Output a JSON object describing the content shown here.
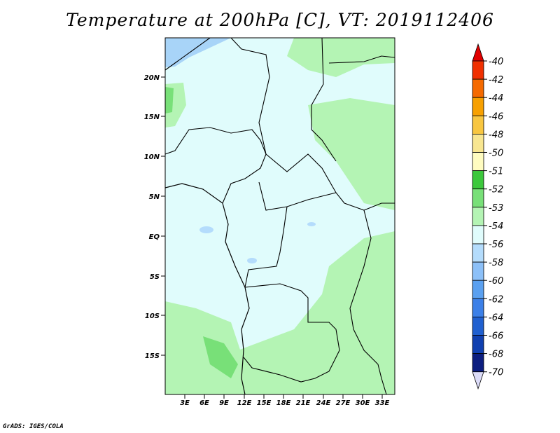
{
  "title": "Temperature at 200hPa [C], VT: 2019112406",
  "credit": "GrADS: IGES/COLA",
  "map": {
    "lat_labels": [
      "20N",
      "15N",
      "10N",
      "5N",
      "EQ",
      "5S",
      "10S",
      "15S"
    ],
    "lon_labels": [
      "3E",
      "6E",
      "9E",
      "12E",
      "15E",
      "18E",
      "21E",
      "24E",
      "27E",
      "30E",
      "33E"
    ]
  },
  "colorbar": {
    "levels": [
      "-40",
      "-42",
      "-44",
      "-46",
      "-48",
      "-50",
      "-51",
      "-52",
      "-53",
      "-54",
      "-56",
      "-58",
      "-60",
      "-62",
      "-64",
      "-66",
      "-68",
      "-70"
    ],
    "colors": [
      "#e00000",
      "#f03000",
      "#f56a00",
      "#f7a000",
      "#f8c640",
      "#f8e690",
      "#fffcc0",
      "#3cc83c",
      "#78e078",
      "#b4f4b4",
      "#e0fcfc",
      "#b4dcfc",
      "#8cc0f8",
      "#5aa0f0",
      "#3c80e8",
      "#2060d0",
      "#1040b0",
      "#0c1e80",
      "#dcdcf8"
    ]
  }
}
